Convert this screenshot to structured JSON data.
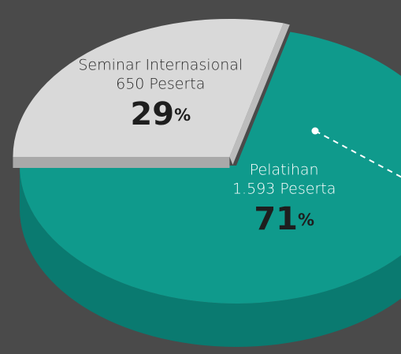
{
  "chart_data": {
    "type": "pie",
    "categories": [
      "Seminar Internasional",
      "Pelatihan"
    ],
    "details": [
      "650 Peserta",
      "1.593 Peserta"
    ],
    "values": [
      29,
      71
    ],
    "unit": "%",
    "colors": [
      "#d9d9d9",
      "#0f9a8c"
    ]
  }
}
